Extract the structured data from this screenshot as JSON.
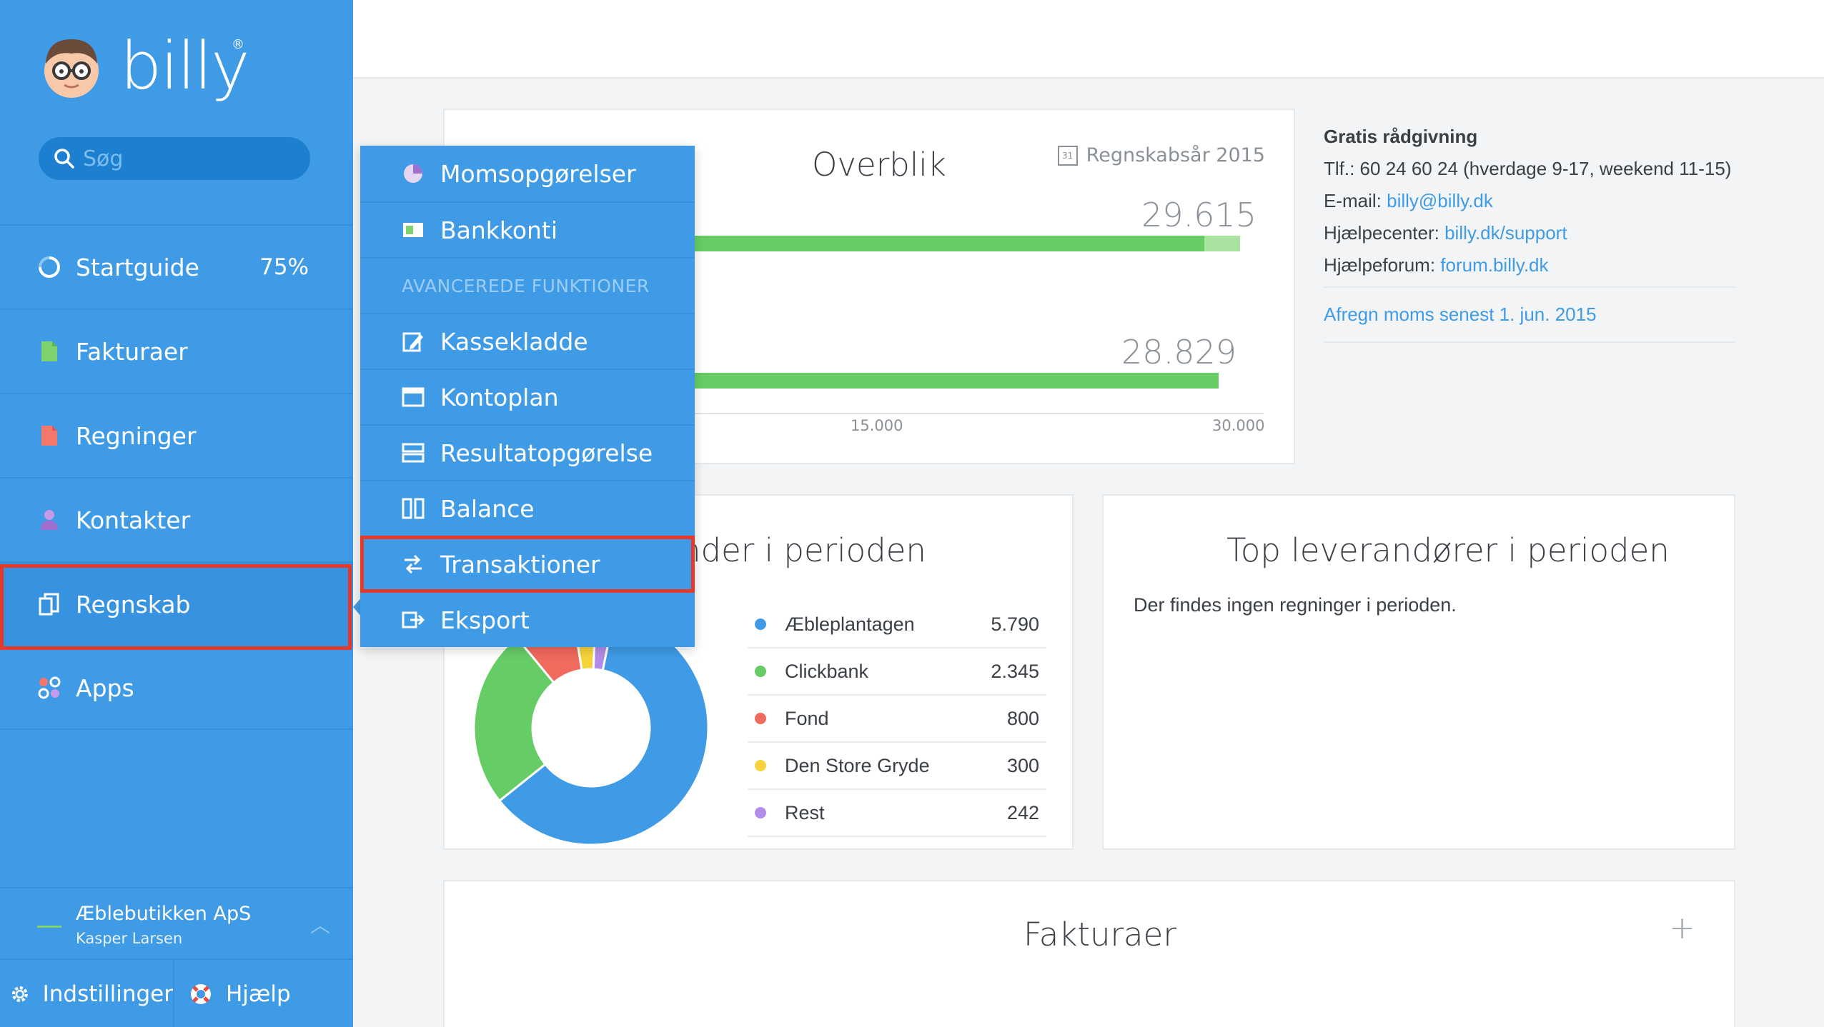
{
  "brand": {
    "name": "billy",
    "reg": "®"
  },
  "search": {
    "placeholder": "Søg"
  },
  "nav": {
    "startguide": {
      "label": "Startguide",
      "progress": "75%"
    },
    "fakturaer": {
      "label": "Fakturaer"
    },
    "regninger": {
      "label": "Regninger"
    },
    "kontakter": {
      "label": "Kontakter"
    },
    "regnskab": {
      "label": "Regnskab"
    },
    "apps": {
      "label": "Apps"
    }
  },
  "company": {
    "name": "Æblebutikken ApS",
    "user": "Kasper Larsen"
  },
  "bottom": {
    "settings": "Indstillinger",
    "help": "Hjælp"
  },
  "menu": {
    "items": [
      {
        "label": "Momsopgørelser"
      },
      {
        "label": "Bankkonti"
      },
      {
        "label": "AVANCEREDE FUNKTIONER"
      },
      {
        "label": "Kassekladde"
      },
      {
        "label": "Kontoplan"
      },
      {
        "label": "Resultatopgørelse"
      },
      {
        "label": "Balance"
      },
      {
        "label": "Transaktioner"
      },
      {
        "label": "Eksport"
      }
    ]
  },
  "overview": {
    "title": "Overblik",
    "period": "Regnskabsår 2015",
    "calendar_day": "31",
    "value1": "29.615",
    "value2": "28.829",
    "ticks": [
      "15.000",
      "30.000"
    ]
  },
  "chart_data": [
    {
      "type": "bar",
      "title": "Overblik",
      "orientation": "horizontal",
      "values": [
        29615,
        28829
      ],
      "xlim": [
        0,
        30000
      ],
      "xticks": [
        "15.000",
        "30.000"
      ]
    },
    {
      "type": "pie",
      "title": "…nder i perioden",
      "categories": [
        "Æbleplantagen",
        "Clickbank",
        "Fond",
        "Den Store Gryde",
        "Rest"
      ],
      "values": [
        5790,
        2345,
        800,
        300,
        242
      ],
      "colors": [
        "#3f9be6",
        "#66cc66",
        "#f06a5e",
        "#f5d43b",
        "#b28ce8"
      ]
    }
  ],
  "info": {
    "title": "Gratis rådgivning",
    "phone": "Tlf.: 60 24 60 24 (hverdage 9-17, weekend 11-15)",
    "email_label": "E-mail: ",
    "email": "billy@billy.dk",
    "helpcenter_label": "Hjælpecenter: ",
    "helpcenter": "billy.dk/support",
    "forum_label": "Hjælpeforum: ",
    "forum": "forum.billy.dk",
    "vat": "Afregn moms senest 1. jun. 2015"
  },
  "customers": {
    "title": "nder i perioden",
    "rows": [
      {
        "name": "Æbleplantagen",
        "value": "5.790",
        "color": "#3f9be6"
      },
      {
        "name": "Clickbank",
        "value": "2.345",
        "color": "#66cc66"
      },
      {
        "name": "Fond",
        "value": "800",
        "color": "#f06a5e"
      },
      {
        "name": "Den Store Gryde",
        "value": "300",
        "color": "#f5d43b"
      },
      {
        "name": "Rest",
        "value": "242",
        "color": "#b28ce8"
      }
    ]
  },
  "suppliers": {
    "title": "Top leverandører i perioden",
    "empty": "Der findes ingen regninger i perioden."
  },
  "invoices": {
    "title": "Fakturaer",
    "add": "+"
  }
}
